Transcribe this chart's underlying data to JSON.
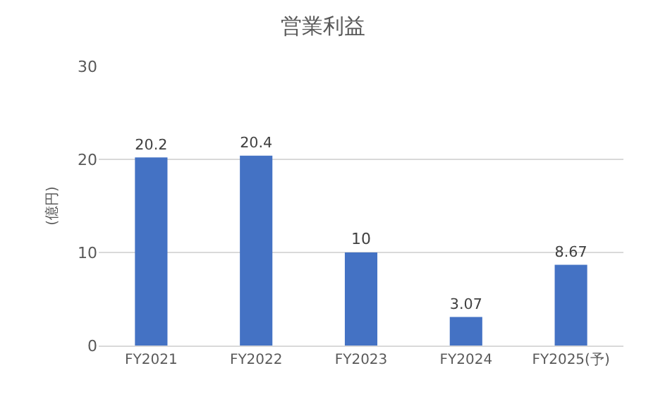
{
  "chart_data": {
    "type": "bar",
    "title": "営業利益",
    "ylabel": "(億円)",
    "categories": [
      "FY2021",
      "FY2022",
      "FY2023",
      "FY2024",
      "FY2025(予)"
    ],
    "values": [
      20.2,
      20.4,
      10,
      3.07,
      8.67
    ],
    "color": "#4472c4",
    "ylim": [
      0,
      30
    ],
    "yticks": [
      0,
      10,
      20,
      30
    ],
    "grid": "y",
    "data_labels": true,
    "legend": false
  }
}
